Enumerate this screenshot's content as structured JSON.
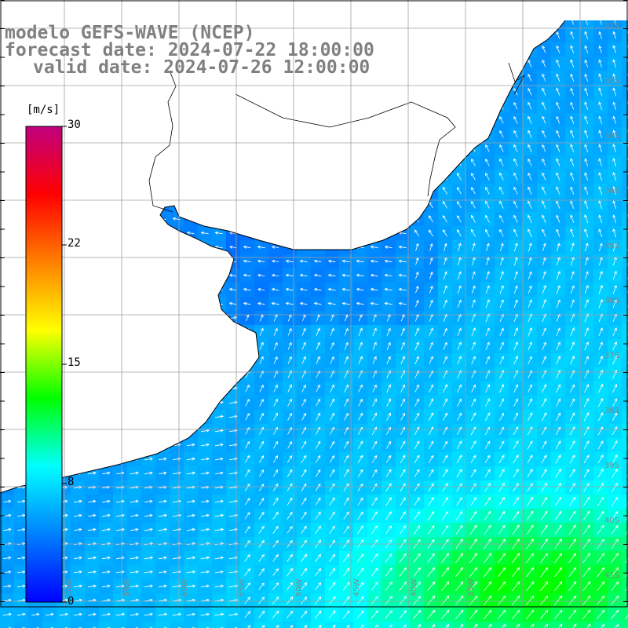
{
  "title": {
    "line1": "modelo GEFS-WAVE (NCEP)",
    "line2": "forecast date: 2024-07-22 18:00:00",
    "line3": "valid date: 2024-07-26 12:00:00"
  },
  "colorbar": {
    "unit": "[m/s]",
    "min": 0,
    "max": 30,
    "ticks": [
      "30",
      "22",
      "15",
      "8",
      "0"
    ],
    "colors": [
      "#0000ff",
      "#0080ff",
      "#00ffff",
      "#00ff00",
      "#ffff00",
      "#ff8000",
      "#ff0000",
      "#c0007f"
    ]
  },
  "map": {
    "lat_labels": [
      "31S",
      "32S",
      "33S",
      "34S",
      "35S",
      "36S",
      "37S",
      "38S",
      "39S",
      "40S",
      "41S"
    ],
    "lon_labels": [
      "70W",
      "65W",
      "60W",
      "55W",
      "50W",
      "45W",
      "40W",
      "35W"
    ],
    "land_color": "#ffffff",
    "grid_color": "#a0a0a0"
  }
}
